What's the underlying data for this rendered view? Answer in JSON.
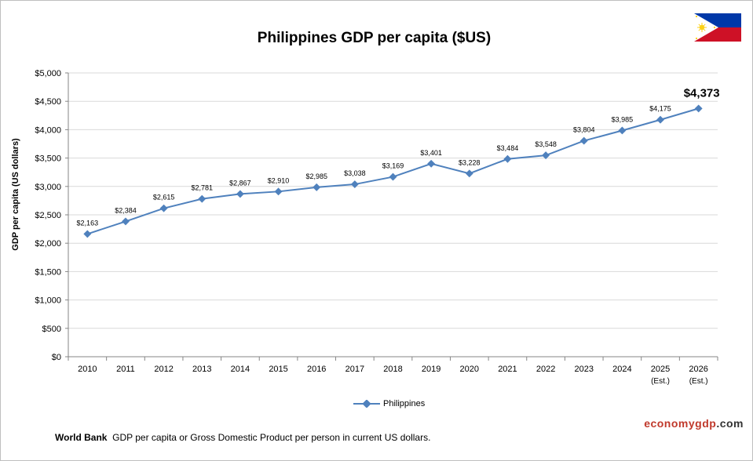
{
  "colors": {
    "series": "#4f81bd",
    "grid": "#d9d9d9",
    "axis": "#868686"
  },
  "icons": {
    "flag": "philippines-flag-icon"
  },
  "chart_data": {
    "type": "line",
    "title": "Philippines GDP per capita ($US)",
    "ylabel": "GDP per capita (US dollars)",
    "xlabel": "",
    "ylim": [
      0,
      5000
    ],
    "y_ticks": [
      "$0",
      "$500",
      "$1,000",
      "$1,500",
      "$2,000",
      "$2,500",
      "$3,000",
      "$3,500",
      "$4,000",
      "$4,500",
      "$5,000"
    ],
    "categories": [
      "2010",
      "2011",
      "2012",
      "2013",
      "2014",
      "2015",
      "2016",
      "2017",
      "2018",
      "2019",
      "2020",
      "2021",
      "2022",
      "2023",
      "2024",
      "2025",
      "2026"
    ],
    "category_sublabels": [
      "",
      "",
      "",
      "",
      "",
      "",
      "",
      "",
      "",
      "",
      "",
      "",
      "",
      "",
      "",
      "(Est.)",
      "(Est.)"
    ],
    "series": [
      {
        "name": "Philippines",
        "values": [
          2163,
          2384,
          2615,
          2781,
          2867,
          2910,
          2985,
          3038,
          3169,
          3401,
          3228,
          3484,
          3548,
          3804,
          3985,
          4175,
          4373
        ],
        "data_labels": [
          "$2,163",
          "$2,384",
          "$2,615",
          "$2,781",
          "$2,867",
          "$2,910",
          "$2,985",
          "$3,038",
          "$3,169",
          "$3,401",
          "$3,228",
          "$3,484",
          "$3,548",
          "$3,804",
          "$3,985",
          "$4,175",
          "$4,373"
        ]
      }
    ],
    "grid": true,
    "legend_position": "bottom"
  },
  "legend": {
    "label": "Philippines"
  },
  "footnote": {
    "source": "World Bank",
    "text": "GDP per capita or Gross Domestic Product per person in current US dollars."
  },
  "brand": {
    "part1": "economygdp",
    "part2": ".com"
  }
}
